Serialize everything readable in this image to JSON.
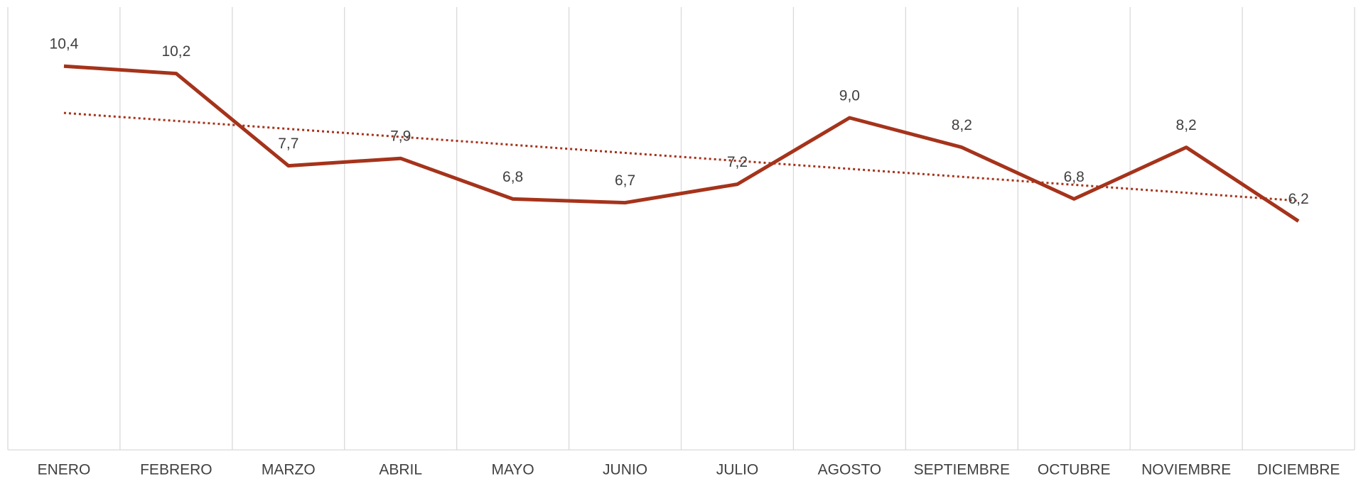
{
  "chart_data": {
    "type": "line",
    "categories": [
      "ENERO",
      "FEBRERO",
      "MARZO",
      "ABRIL",
      "MAYO",
      "JUNIO",
      "JULIO",
      "AGOSTO",
      "SEPTIEMBRE",
      "OCTUBRE",
      "NOVIEMBRE",
      "DICIEMBRE"
    ],
    "series": [
      {
        "name": null,
        "color": "#a5331b",
        "values": [
          10.4,
          10.2,
          7.7,
          7.9,
          6.8,
          6.7,
          7.2,
          9.0,
          8.2,
          6.8,
          8.2,
          6.2
        ],
        "value_labels": [
          "10,4",
          "10,2",
          "7,7",
          "7,9",
          "6,8",
          "6,7",
          "7,2",
          "9,0",
          "8,2",
          "6,8",
          "8,2",
          "6,2"
        ]
      }
    ],
    "ylim": [
      0,
      12
    ],
    "trendline": "linear",
    "grid": true
  }
}
